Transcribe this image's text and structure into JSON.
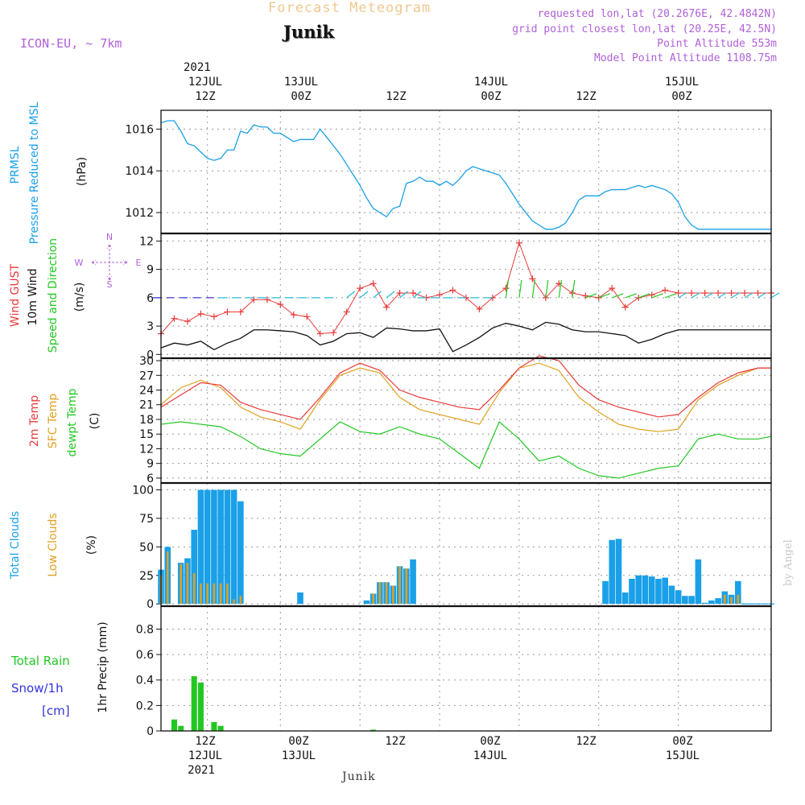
{
  "header": {
    "title": "Forecast Meteogram",
    "location": "Junik",
    "model": "ICON-EU, ~ 7km",
    "requested": "requested lon,lat (20.2676E, 42.4842N)",
    "grid_point": "grid point closest lon,lat (20.25E, 42.5N)",
    "point_altitude": "Point Altitude 553m",
    "model_altitude": "Model Point Altitude 1108.75m"
  },
  "top_axis": {
    "year": "2021",
    "ticks": [
      {
        "hour": "12Z",
        "date": "12JUL"
      },
      {
        "hour": "00Z",
        "date": "13JUL"
      },
      {
        "hour": "12Z",
        "date": ""
      },
      {
        "hour": "00Z",
        "date": "14JUL"
      },
      {
        "hour": "12Z",
        "date": ""
      },
      {
        "hour": "00Z",
        "date": "15JUL"
      }
    ]
  },
  "bottom_axis": {
    "year": "2021",
    "location": "Junik",
    "ticks": [
      {
        "hour": "12Z",
        "date": "12JUL"
      },
      {
        "hour": "00Z",
        "date": "13JUL"
      },
      {
        "hour": "12Z",
        "date": ""
      },
      {
        "hour": "00Z",
        "date": "14JUL"
      },
      {
        "hour": "12Z",
        "date": ""
      },
      {
        "hour": "00Z",
        "date": "15JUL"
      }
    ]
  },
  "credit": "by Angel",
  "colors": {
    "pressure": "#1aa0e8",
    "gust": "#e83a3a",
    "wind": "#111111",
    "arrow": "#22c822",
    "temp": "#e83a3a",
    "sfc": "#e0a020",
    "dewpt": "#22c822",
    "total_clouds": "#1aa0e8",
    "low_clouds": "#e0a020",
    "rain": "#22c822",
    "snow": "#3333dd",
    "model": "#b060d8"
  },
  "chart_data": [
    {
      "type": "line",
      "panel": "pressure",
      "labels": [
        "PRMSL",
        "Pressure Reduced to MSL"
      ],
      "units": "(hPa)",
      "x_unit": "hours from 2021-07-12 06Z",
      "ylim": [
        1011,
        1016.9
      ],
      "yticks": [
        1012,
        1014,
        1016
      ],
      "series": [
        {
          "name": "PRMSL",
          "x": [
            0,
            1,
            2,
            3,
            4,
            5,
            6,
            7,
            8,
            9,
            10,
            11,
            12,
            13,
            14,
            15,
            16,
            17,
            18,
            19,
            20,
            21,
            22,
            23,
            24,
            25,
            26,
            27,
            28,
            29,
            30,
            31,
            32,
            33,
            34,
            35,
            36,
            37,
            38,
            39,
            40,
            41,
            42,
            43,
            44,
            45,
            46,
            47,
            48,
            49,
            50,
            51,
            52,
            53,
            54,
            55,
            56,
            57,
            58,
            59,
            60,
            61,
            62,
            63,
            64,
            65,
            66,
            67,
            68,
            69,
            70,
            71,
            72,
            73,
            74,
            75,
            76,
            77,
            78,
            79,
            80,
            81,
            82,
            83,
            84,
            85,
            86,
            87,
            88,
            89,
            90,
            91,
            92
          ],
          "values": [
            1016.3,
            1016.4,
            1016.4,
            1015.9,
            1015.3,
            1015.2,
            1014.9,
            1014.6,
            1014.5,
            1014.6,
            1015.0,
            1015.0,
            1015.9,
            1015.8,
            1016.2,
            1016.1,
            1016.1,
            1015.8,
            1015.8,
            1015.6,
            1015.4,
            1015.5,
            1015.5,
            1015.5,
            1016.0,
            1015.6,
            1015.2,
            1014.8,
            1014.3,
            1013.8,
            1013.3,
            1012.7,
            1012.2,
            1012.0,
            1011.8,
            1012.2,
            1012.3,
            1013.4,
            1013.5,
            1013.7,
            1013.5,
            1013.5,
            1013.3,
            1013.5,
            1013.3,
            1013.6,
            1014.0,
            1014.2,
            1014.1,
            1014.0,
            1013.9,
            1013.8,
            1013.4,
            1012.9,
            1012.4,
            1012.0,
            1011.6,
            1011.4,
            1011.2,
            1011.2,
            1011.3,
            1011.5,
            1012.0,
            1012.6,
            1012.8,
            1012.8,
            1012.8,
            1013.0,
            1013.1,
            1013.1,
            1013.1,
            1013.2,
            1013.3,
            1013.2,
            1013.3,
            1013.2,
            1013.1,
            1012.9,
            1012.5,
            1011.8,
            1011.4,
            1011.2,
            1011.2,
            1011.2,
            1011.2,
            1011.2,
            1011.2,
            1011.2,
            1011.2,
            1011.2,
            1011.2,
            1011.2,
            1011.2
          ]
        }
      ]
    },
    {
      "type": "line",
      "panel": "wind",
      "labels": [
        "Wind GUST",
        "10m Wind",
        "Speed and Direction"
      ],
      "units": "(m/s)",
      "compass": {
        "n": "N",
        "w": "W",
        "e": "E",
        "s": "S"
      },
      "ylim": [
        -0.4,
        12.8
      ],
      "yticks": [
        0,
        3,
        6,
        9,
        12
      ],
      "series": [
        {
          "name": "Wind GUST",
          "x": [
            0,
            2,
            4,
            6,
            8,
            10,
            12,
            14,
            16,
            18,
            20,
            22,
            24,
            26,
            28,
            30,
            32,
            34,
            36,
            38,
            40,
            42,
            44,
            46,
            48,
            50,
            52,
            54,
            56,
            58,
            60,
            62,
            64,
            66,
            68,
            70,
            72,
            74,
            76,
            78,
            80,
            82,
            84,
            86,
            88,
            90,
            92
          ],
          "values": [
            2.2,
            3.8,
            3.5,
            4.3,
            4.0,
            4.5,
            4.5,
            5.8,
            5.8,
            5.3,
            4.2,
            4.0,
            2.2,
            2.3,
            4.5,
            7.0,
            7.5,
            5.0,
            6.5,
            6.5,
            6.0,
            6.3,
            6.8,
            6.0,
            4.8,
            6.0,
            7.0,
            11.8,
            8.0,
            6.0,
            7.5,
            6.5,
            6.2,
            6.0,
            7.0,
            5.0,
            6.0,
            6.3,
            6.8,
            6.5,
            6.5,
            6.5,
            6.5,
            6.5,
            6.5,
            6.5,
            6.5
          ]
        },
        {
          "name": "10m Wind",
          "x": [
            0,
            2,
            4,
            6,
            8,
            10,
            12,
            14,
            16,
            18,
            20,
            22,
            24,
            26,
            28,
            30,
            32,
            34,
            36,
            38,
            40,
            42,
            44,
            46,
            48,
            50,
            52,
            54,
            56,
            58,
            60,
            62,
            64,
            66,
            68,
            70,
            72,
            74,
            76,
            78,
            80,
            82,
            84,
            86,
            88,
            90,
            92
          ],
          "values": [
            0.7,
            1.2,
            1.0,
            1.4,
            0.5,
            1.2,
            1.7,
            2.6,
            2.6,
            2.5,
            2.4,
            2.0,
            1.0,
            1.4,
            2.2,
            2.3,
            1.8,
            2.8,
            2.7,
            2.5,
            2.5,
            2.7,
            0.3,
            1.0,
            1.8,
            2.8,
            3.3,
            3.0,
            2.6,
            3.4,
            3.2,
            2.6,
            2.4,
            2.4,
            2.2,
            2.0,
            1.2,
            1.6,
            2.2,
            2.6,
            2.6,
            2.6,
            2.6,
            2.6,
            2.6,
            2.6,
            2.6
          ]
        }
      ]
    },
    {
      "type": "line",
      "panel": "temperature",
      "labels": [
        "2m Temp",
        "SFC Temp",
        "dewpt Temp"
      ],
      "units": "(C)",
      "ylim": [
        5,
        30.5
      ],
      "yticks": [
        6,
        9,
        12,
        15,
        18,
        21,
        24,
        27,
        30
      ],
      "series": [
        {
          "name": "2m Temp",
          "x": [
            0,
            3,
            6,
            9,
            12,
            15,
            18,
            21,
            24,
            27,
            30,
            33,
            36,
            39,
            42,
            45,
            48,
            51,
            54,
            57,
            60,
            63,
            66,
            69,
            72,
            75,
            78,
            81,
            84,
            87,
            90,
            92
          ],
          "values": [
            20.5,
            23.0,
            25.5,
            25.0,
            21.5,
            20.0,
            19.0,
            18.0,
            22.5,
            27.5,
            29.5,
            28.0,
            24.0,
            22.5,
            21.5,
            20.5,
            20.0,
            24.0,
            28.5,
            31.0,
            30.0,
            25.0,
            22.0,
            20.5,
            19.5,
            18.5,
            19.0,
            22.5,
            25.5,
            27.5,
            28.5,
            28.5
          ]
        },
        {
          "name": "SFC Temp",
          "x": [
            0,
            3,
            6,
            9,
            12,
            15,
            18,
            21,
            24,
            27,
            30,
            33,
            36,
            39,
            42,
            45,
            48,
            51,
            54,
            57,
            60,
            63,
            66,
            69,
            72,
            75,
            78,
            81,
            84,
            87,
            90,
            92
          ],
          "values": [
            21.0,
            24.5,
            26.0,
            24.5,
            20.5,
            18.5,
            17.5,
            16.0,
            22.0,
            27.0,
            28.5,
            27.5,
            22.5,
            20.0,
            19.0,
            18.0,
            17.0,
            23.5,
            28.5,
            29.5,
            28.0,
            22.5,
            19.5,
            17.0,
            16.0,
            15.5,
            16.0,
            22.0,
            25.0,
            27.0,
            28.5,
            28.5
          ]
        },
        {
          "name": "dewpt Temp",
          "x": [
            0,
            3,
            6,
            9,
            12,
            15,
            18,
            21,
            24,
            27,
            30,
            33,
            36,
            39,
            42,
            45,
            48,
            51,
            54,
            57,
            60,
            63,
            66,
            69,
            72,
            75,
            78,
            81,
            84,
            87,
            90,
            92
          ],
          "values": [
            17.0,
            17.5,
            17.0,
            16.5,
            14.5,
            12.0,
            11.0,
            10.5,
            14.0,
            17.5,
            15.5,
            15.0,
            16.5,
            15.0,
            14.0,
            11.0,
            8.0,
            17.5,
            14.0,
            9.5,
            10.5,
            8.0,
            6.5,
            6.0,
            7.0,
            8.0,
            8.5,
            14.0,
            15.0,
            14.0,
            14.0,
            14.5
          ]
        }
      ]
    },
    {
      "type": "bar",
      "panel": "clouds",
      "labels": [
        "Total Clouds",
        "Low Clouds"
      ],
      "units": "(%)",
      "ylim": [
        -2,
        106
      ],
      "yticks": [
        0,
        25,
        50,
        75,
        100
      ],
      "series": [
        {
          "name": "Total Clouds",
          "x": [
            0,
            1,
            3,
            4,
            5,
            6,
            7,
            8,
            9,
            10,
            11,
            12,
            21,
            31,
            32,
            33,
            34,
            35,
            36,
            37,
            38,
            67,
            68,
            69,
            70,
            71,
            72,
            73,
            74,
            75,
            76,
            77,
            78,
            79,
            80,
            81,
            82,
            83,
            84,
            85,
            86,
            87,
            88,
            89,
            90,
            91,
            92
          ],
          "values": [
            30,
            50,
            36,
            40,
            65,
            100,
            100,
            100,
            100,
            100,
            100,
            90,
            10,
            3,
            9,
            19,
            19,
            16,
            33,
            31,
            39,
            20,
            56,
            57,
            10,
            22,
            25,
            25,
            24,
            22,
            23,
            16,
            12,
            7,
            7,
            39,
            1,
            3,
            5,
            11,
            8,
            20,
            0,
            0,
            0,
            0,
            0
          ]
        },
        {
          "name": "Low Clouds",
          "x": [
            0,
            1,
            3,
            4,
            5,
            6,
            7,
            8,
            9,
            10,
            11,
            12,
            21,
            31,
            32,
            33,
            34,
            35,
            36,
            37,
            38,
            67,
            68,
            69,
            70,
            71,
            72,
            73,
            74,
            75,
            76,
            77,
            78,
            79,
            80,
            81,
            82,
            83,
            84,
            85,
            86,
            87,
            88,
            89,
            90,
            91,
            92
          ],
          "values": [
            25,
            46,
            35,
            36,
            27,
            18,
            18,
            18,
            18,
            18,
            4,
            7,
            0,
            0,
            9,
            19,
            19,
            16,
            33,
            31,
            0,
            0,
            0,
            0,
            0,
            0,
            0,
            0,
            0,
            0,
            0,
            0,
            0,
            0,
            0,
            0,
            0,
            0,
            0,
            8,
            6,
            8,
            0,
            0,
            0,
            0,
            0
          ]
        }
      ]
    },
    {
      "type": "bar",
      "panel": "precip",
      "labels": [
        "Total Rain",
        "Snow/1h",
        "[cm]"
      ],
      "units": "1hr Precip (mm)",
      "ylim": [
        0,
        0.98
      ],
      "yticks": [
        0,
        0.2,
        0.4,
        0.6,
        0.8
      ],
      "ytick_labels": [
        "0",
        "0.2",
        "0.4",
        "0.6",
        "0.8"
      ],
      "series": [
        {
          "name": "Total Rain",
          "x": [
            2,
            3,
            5,
            6,
            8,
            9,
            32
          ],
          "values": [
            0.09,
            0.04,
            0.43,
            0.38,
            0.07,
            0.04,
            0.01
          ]
        }
      ]
    }
  ]
}
